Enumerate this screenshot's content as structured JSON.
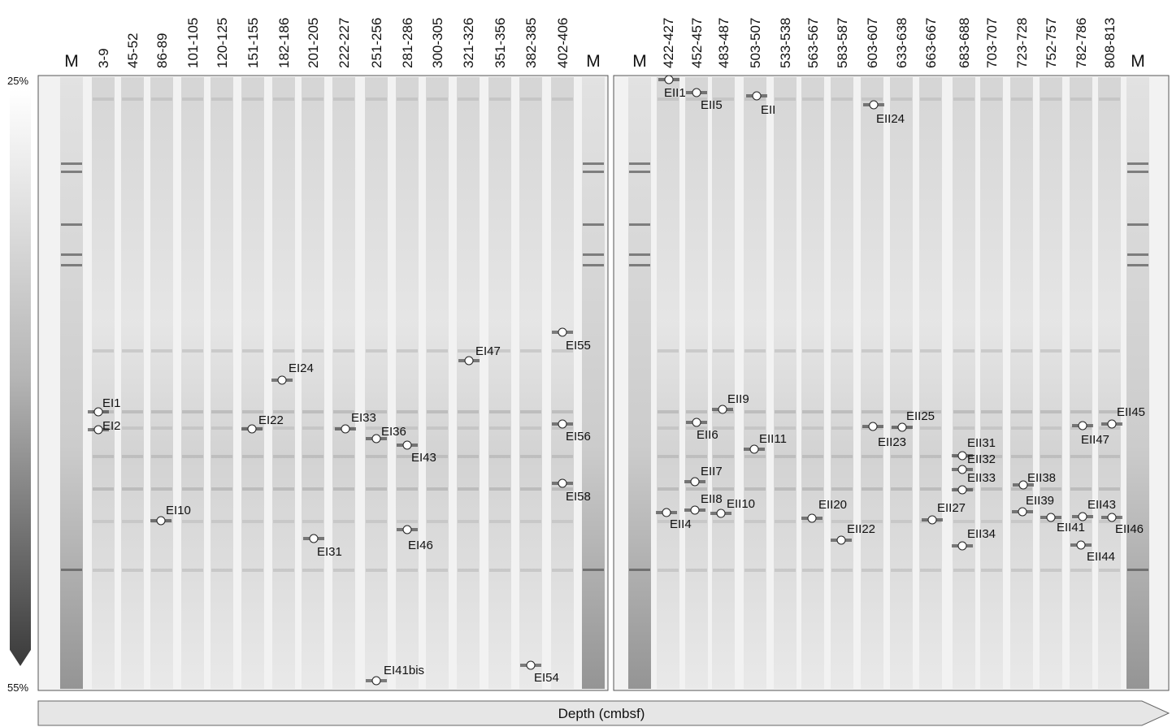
{
  "gradient": {
    "top": "25%",
    "bottom": "55%"
  },
  "axis_label": "Depth (cmbsf)",
  "gels": [
    {
      "lanes": [
        "M",
        "3-9",
        "45-52",
        "86-89",
        "101-105",
        "120-125",
        "151-155",
        "182-186",
        "201-205",
        "222-227",
        "251-256",
        "281-286",
        "300-305",
        "321-326",
        "351-356",
        "382-385",
        "402-406",
        "M"
      ],
      "bands": [
        "EI1",
        "EI2",
        "EI10",
        "EI22",
        "EI24",
        "EI31",
        "EI33",
        "EI36",
        "EI41bis",
        "EI43",
        "EI46",
        "EI47",
        "EI54",
        "EI55",
        "EI56",
        "EI58"
      ]
    },
    {
      "lanes": [
        "M",
        "422-427",
        "452-457",
        "483-487",
        "503-507",
        "533-538",
        "563-567",
        "583-587",
        "603-607",
        "633-638",
        "663-667",
        "683-688",
        "703-707",
        "723-728",
        "752-757",
        "782-786",
        "808-813",
        "M"
      ],
      "bands": [
        "EII1",
        "EII5",
        "EII",
        "EII24",
        "EII9",
        "EII6",
        "EII11",
        "EII23",
        "EII25",
        "EII31",
        "EII32",
        "EII33",
        "EII38",
        "EII7",
        "EII8",
        "EII10",
        "EII4",
        "EII20",
        "EII22",
        "EII27",
        "EII34",
        "EII39",
        "EII41",
        "EII43",
        "EII44",
        "EII45",
        "EII46",
        "EII47"
      ]
    }
  ]
}
